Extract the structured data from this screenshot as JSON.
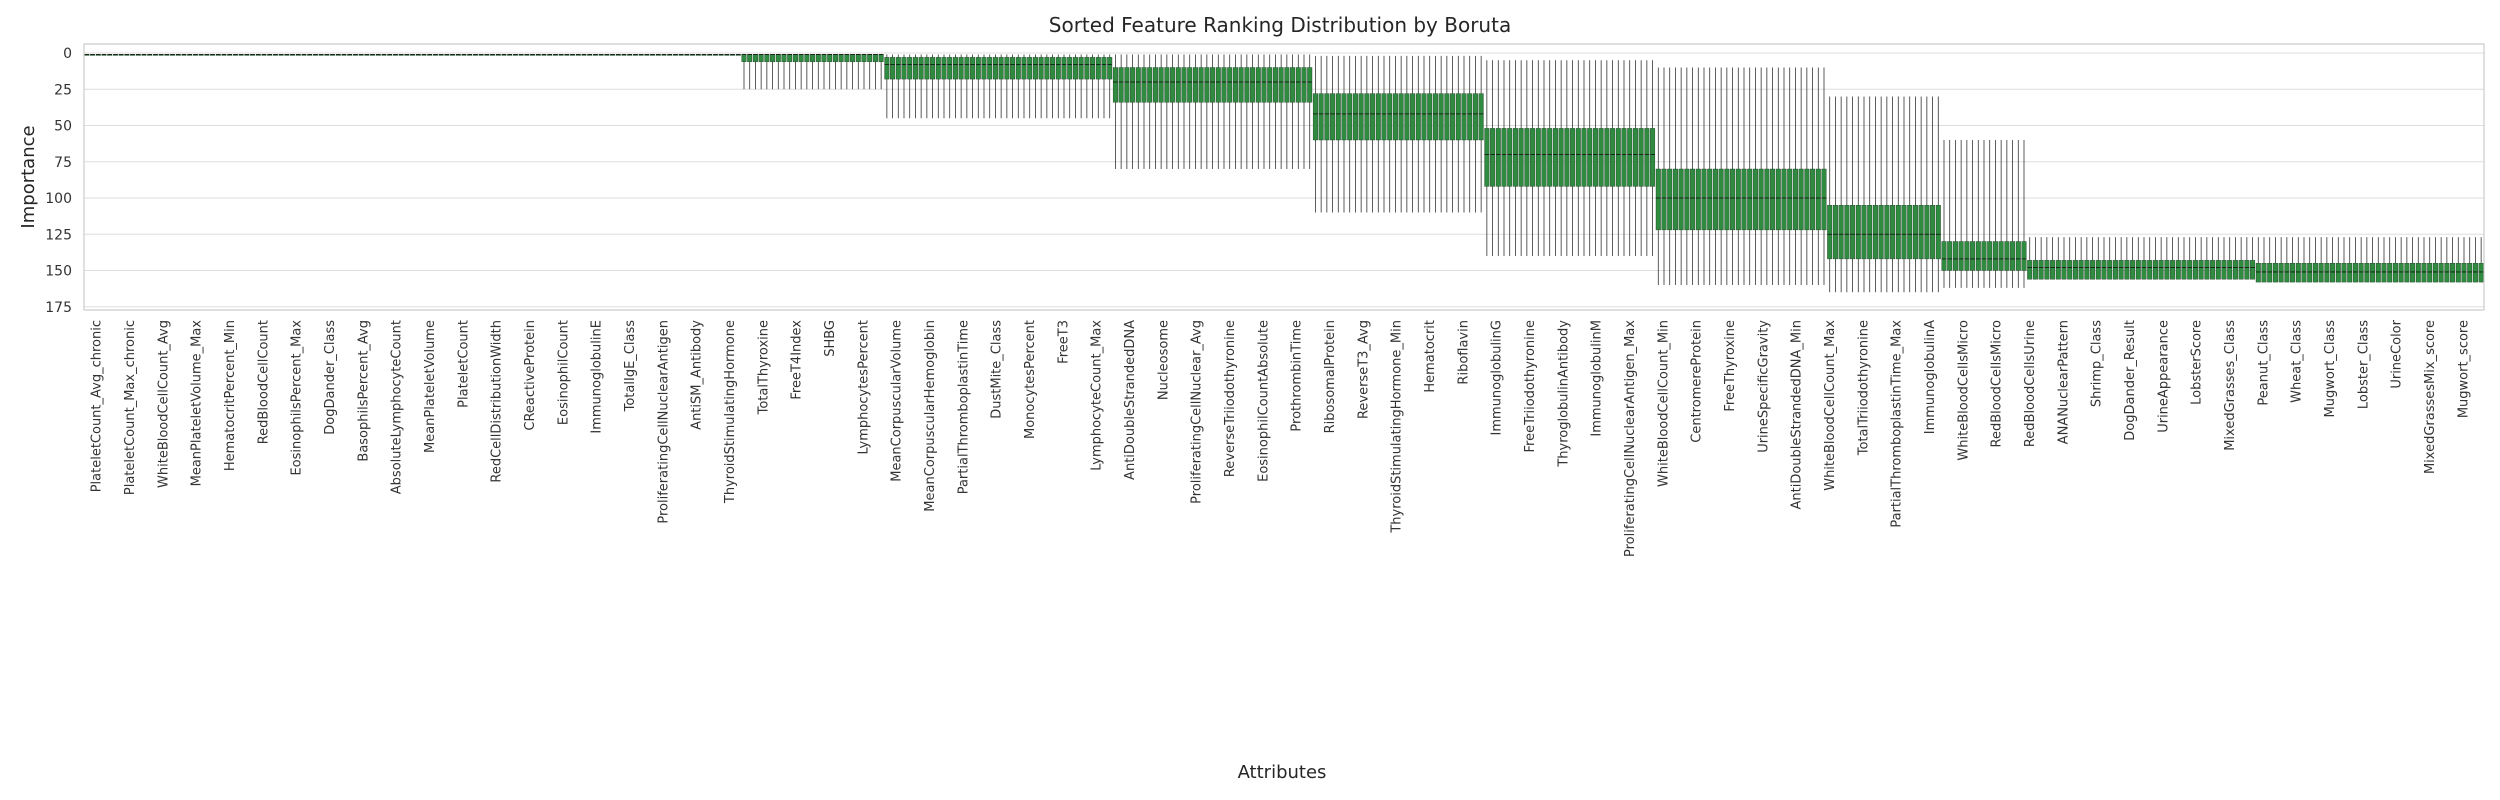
{
  "chart_data": {
    "type": "box",
    "title": "Sorted Feature Ranking Distribution by Boruta",
    "xlabel": "Attributes",
    "ylabel": "Importance",
    "ylim": [
      0,
      175
    ],
    "y_inverted": true,
    "yticks": [
      0,
      25,
      50,
      75,
      100,
      125,
      150,
      175
    ],
    "grid": true,
    "box_color": "#2e8b3f",
    "sorting": "ascending by median importance rank",
    "groups": [
      {
        "from": 1,
        "to": 115,
        "median": 1,
        "q1": 1,
        "q3": 1,
        "whisker_low": 1,
        "whisker_high": 1
      },
      {
        "from": 116,
        "to": 140,
        "median": 1,
        "q1": 1,
        "q3": 6,
        "whisker_low": 1,
        "whisker_high": 25
      },
      {
        "from": 141,
        "to": 180,
        "median": 8,
        "q1": 3,
        "q3": 18,
        "whisker_low": 1,
        "whisker_high": 45
      },
      {
        "from": 181,
        "to": 215,
        "median": 20,
        "q1": 10,
        "q3": 34,
        "whisker_low": 1,
        "whisker_high": 80
      },
      {
        "from": 216,
        "to": 245,
        "median": 42,
        "q1": 28,
        "q3": 60,
        "whisker_low": 2,
        "whisker_high": 110
      },
      {
        "from": 246,
        "to": 275,
        "median": 70,
        "q1": 52,
        "q3": 92,
        "whisker_low": 5,
        "whisker_high": 140
      },
      {
        "from": 276,
        "to": 305,
        "median": 100,
        "q1": 80,
        "q3": 122,
        "whisker_low": 10,
        "whisker_high": 160
      },
      {
        "from": 306,
        "to": 325,
        "median": 125,
        "q1": 105,
        "q3": 142,
        "whisker_low": 30,
        "whisker_high": 165
      },
      {
        "from": 326,
        "to": 340,
        "median": 142,
        "q1": 130,
        "q3": 150,
        "whisker_low": 60,
        "whisker_high": 162
      },
      {
        "from": 341,
        "to": 380,
        "median": 148,
        "q1": 143,
        "q3": 156,
        "whisker_low": 127,
        "whisker_high": 156
      },
      {
        "from": 381,
        "to": 420,
        "median": 151,
        "q1": 145,
        "q3": 158,
        "whisker_low": 127,
        "whisker_high": 158
      }
    ],
    "n_features": 420,
    "x_tick_labels": [
      "PlateletCount_Avg_chronic",
      "PlateletCount_Max_chronic",
      "WhiteBloodCellCount_Avg",
      "MeanPlateletVolume_Max",
      "HematocritPercent_Min",
      "RedBloodCellCount",
      "EosinophilsPercent_Max",
      "DogDander_Class",
      "BasophilsPercent_Avg",
      "AbsoluteLymphocyteCount",
      "MeanPlateletVolume",
      "PlateletCount",
      "RedCellDistributionWidth",
      "CReactiveProtein",
      "EosinophilCount",
      "ImmunoglobulinE",
      "TotalIgE_Class",
      "ProliferatingCellNuclearAntigen",
      "AntiSM_Antibody",
      "ThyroidStimulatingHormone",
      "TotalThyroxine",
      "FreeT4Index",
      "SHBG",
      "LymphocytesPercent",
      "MeanCorpuscularVolume",
      "MeanCorpuscularHemoglobin",
      "PartialThromboplastinTime",
      "DustMite_Class",
      "MonocytesPercent",
      "FreeT3",
      "LymphocyteCount_Max",
      "AntiDoubleStrandedDNA",
      "Nucleosome",
      "ProliferatingCellNuclear_Avg",
      "ReverseTriiodothyronine",
      "EosinophilCountAbsolute",
      "ProthrombinTime",
      "RibosomalProtein",
      "ReverseT3_Avg",
      "ThyroidStimulatingHormone_Min",
      "Hematocrit",
      "Riboflavin",
      "ImmunoglobulinG",
      "FreeTriiodothyronine",
      "ThyroglobulinAntibody",
      "ImmunoglobulinM",
      "ProliferatingCellNuclearAntigen_Max",
      "WhiteBloodCellCount_Min",
      "CentromereProtein",
      "FreeThyroxine",
      "UrineSpecificGravity",
      "AntiDoubleStrandedDNA_Min",
      "WhiteBloodCellCount_Max",
      "TotalTriiodothyronine",
      "PartialThromboplastinTime_Max",
      "ImmunoglobulinA",
      "WhiteBloodCellsMicro",
      "RedBloodCellsMicro",
      "RedBloodCellsUrine",
      "ANANuclearPattern",
      "Shrimp_Class",
      "DogDander_Result",
      "UrineAppearance",
      "LobsterScore",
      "MixedGrasses_Class",
      "Peanut_Class",
      "Wheat_Class",
      "Mugwort_Class",
      "Lobster_Class",
      "UrineColor",
      "MixedGrassesMix_score",
      "Mugwort_score"
    ]
  }
}
